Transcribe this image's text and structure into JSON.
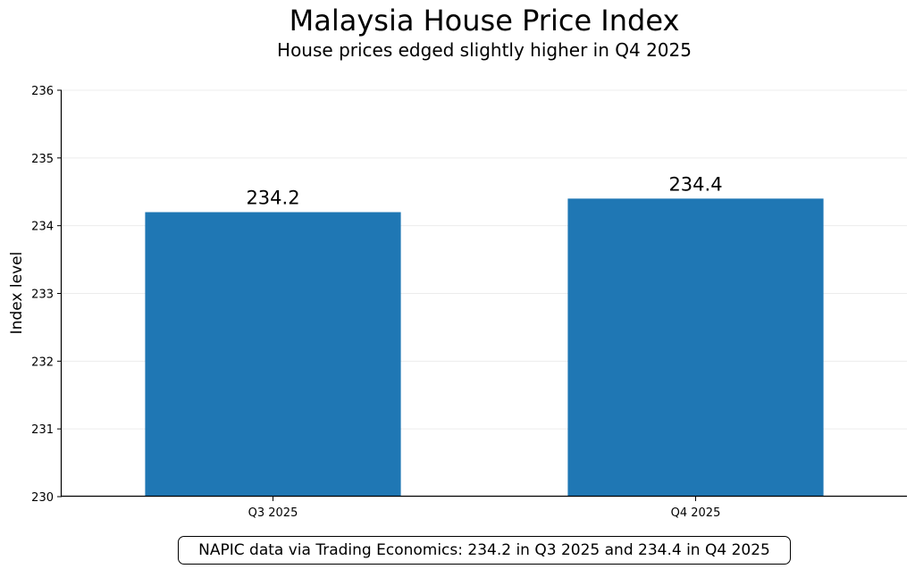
{
  "chart_data": {
    "type": "bar",
    "title": "Malaysia House Price Index",
    "subtitle": "House prices edged slightly higher in Q4 2025",
    "xlabel": "",
    "ylabel": "Index level",
    "categories": [
      "Q3 2025",
      "Q4 2025"
    ],
    "values": [
      234.2,
      234.4
    ],
    "value_labels": [
      "234.2",
      "234.4"
    ],
    "ylim": [
      230,
      236
    ],
    "yticks": [
      "230",
      "231",
      "232",
      "233",
      "234",
      "235",
      "236"
    ],
    "grid": "horizontal",
    "bar_color": "#1f77b4",
    "footnote": "NAPIC data via Trading Economics: 234.2 in Q3 2025 and 234.4 in Q4 2025"
  }
}
